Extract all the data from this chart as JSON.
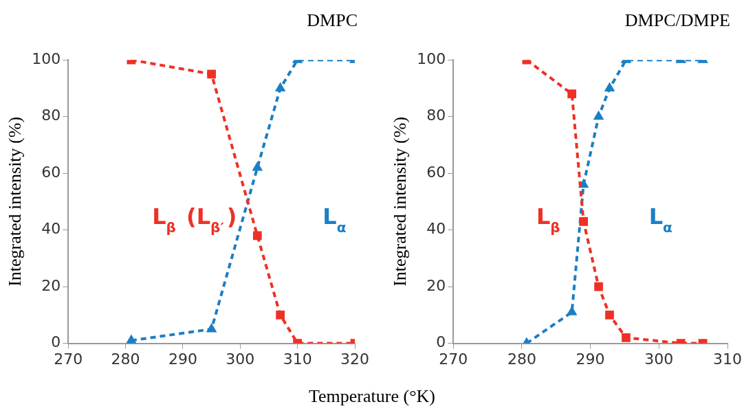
{
  "chart_data": [
    {
      "type": "line",
      "title": "DMPC",
      "xlabel": "Temperature (°K)",
      "ylabel": "Integrated intensity (%)",
      "xlim": [
        270,
        320
      ],
      "xticks": [
        270,
        280,
        290,
        300,
        310,
        320
      ],
      "ylim": [
        0,
        100
      ],
      "yticks": [
        0,
        20,
        40,
        60,
        80,
        100
      ],
      "grid": false,
      "legend": false,
      "line_style": "dashed",
      "series": [
        {
          "name": "L$_{β}$ (L$_{β′}$)",
          "color": "#ee3124",
          "marker": "square",
          "x": [
            281,
            295,
            303,
            307,
            310,
            320
          ],
          "values": [
            100,
            95,
            38,
            10,
            0,
            0
          ]
        },
        {
          "name": "L$_{α}$",
          "color": "#1b7fc4",
          "marker": "triangle",
          "x": [
            281,
            295,
            303,
            307,
            310,
            320
          ],
          "values": [
            1,
            5,
            62,
            90,
            100,
            100
          ]
        }
      ]
    },
    {
      "type": "line",
      "title": "DMPC/DMPE",
      "ylabel": "Integrated intensity (%)",
      "xlim": [
        270,
        310
      ],
      "xticks": [
        270,
        280,
        290,
        300,
        310
      ],
      "ylim": [
        0,
        100
      ],
      "yticks": [
        0,
        20,
        40,
        60,
        80,
        100
      ],
      "grid": false,
      "legend": false,
      "line_style": "dashed",
      "series": [
        {
          "name": "L$_{β}$",
          "color": "#ee3124",
          "marker": "square",
          "x": [
            280.7,
            287.3,
            289,
            291.2,
            292.8,
            295.2,
            303.2,
            306.4
          ],
          "values": [
            100,
            88,
            43,
            20,
            10,
            2,
            0,
            0
          ]
        },
        {
          "name": "L$_{α}$",
          "color": "#1b7fc4",
          "marker": "triangle",
          "x": [
            280.7,
            287.3,
            289,
            291.2,
            292.8,
            295.2,
            303.2,
            306.4
          ],
          "values": [
            0,
            11,
            56,
            80,
            90,
            100,
            100,
            100
          ]
        }
      ]
    }
  ]
}
